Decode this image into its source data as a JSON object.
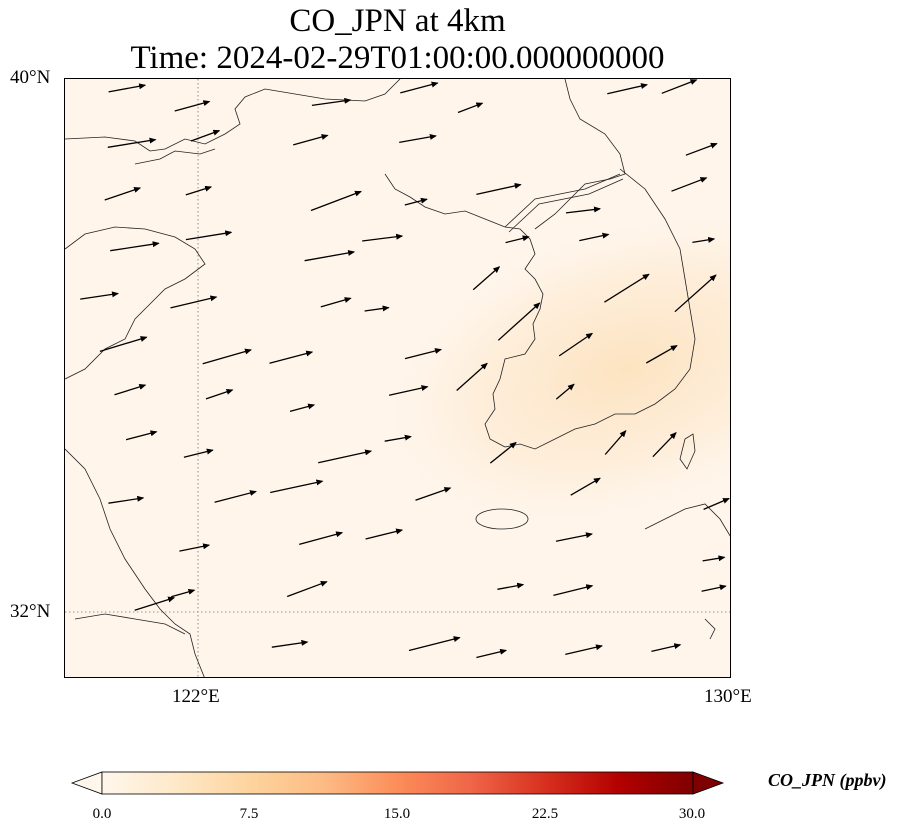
{
  "title": {
    "line1": "CO_JPN at 4km",
    "line2": "Time: 2024-02-29T01:00:00.000000000"
  },
  "map": {
    "lat_labels": [
      "40°N",
      "32°N"
    ],
    "lon_labels": [
      "122°E",
      "130°E"
    ],
    "extent": {
      "lon_min": 120,
      "lon_max": 130,
      "lat_min": 31,
      "lat_max": 40
    },
    "background_color": "#fff5ea",
    "plume_color": "#fde5c5",
    "gridline_style": "dotted",
    "field": "CO concentration with wind vectors"
  },
  "colorbar": {
    "label": "CO_JPN (ppbv)",
    "ticks": [
      "0.0",
      "7.5",
      "15.0",
      "22.5",
      "30.0"
    ],
    "min": 0,
    "max": 30,
    "extend": "both",
    "colormap": "OrRd",
    "colors": [
      "#fff7ec",
      "#fee8c8",
      "#fdd49e",
      "#fdbb84",
      "#fc8d59",
      "#ef6548",
      "#d7301f",
      "#b30000",
      "#7f0000"
    ]
  }
}
